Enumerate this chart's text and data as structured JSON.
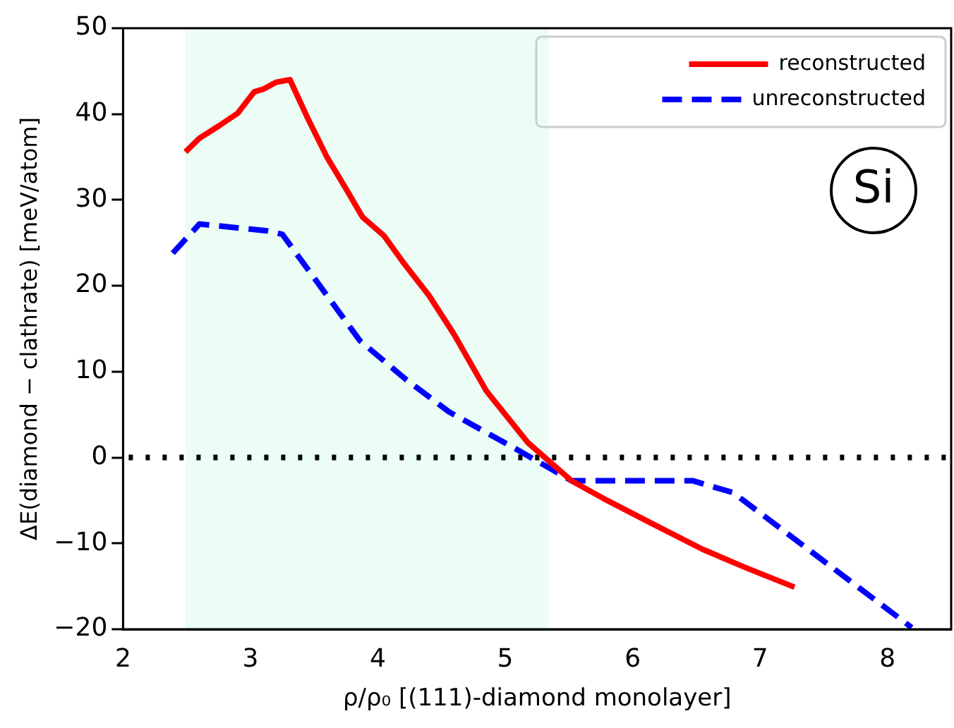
{
  "chart_data": {
    "type": "line",
    "xlabel": "ρ/ρ₀ [(111)-diamond monolayer]",
    "ylabel": "ΔE(diamond − clathrate) [meV/atom]",
    "xlim": [
      2,
      8.5
    ],
    "xticks": [
      2,
      3,
      4,
      5,
      6,
      7,
      8
    ],
    "ylim": [
      -20,
      50
    ],
    "yticks": [
      -20,
      -10,
      0,
      10,
      20,
      30,
      40,
      50
    ],
    "grid": false,
    "legend": "top right",
    "marker": "none",
    "series": [
      {
        "name": "reconstructed",
        "color": "#ff0000",
        "line_style": "solid",
        "x": [
          2.49,
          2.6,
          2.75,
          2.9,
          3.03,
          3.1,
          3.2,
          3.31,
          3.45,
          3.6,
          3.75,
          3.88,
          4.05,
          4.2,
          4.4,
          4.6,
          4.85,
          5.18,
          5.52,
          5.8,
          6.14,
          6.55,
          6.9,
          7.27
        ],
        "values": [
          35.6,
          37.2,
          38.6,
          40.1,
          42.6,
          42.9,
          43.7,
          44.0,
          39.5,
          35.0,
          31.3,
          28.0,
          25.8,
          22.7,
          18.9,
          14.3,
          7.8,
          1.7,
          -2.7,
          -5.0,
          -7.6,
          -10.7,
          -12.9,
          -15.1
        ]
      },
      {
        "name": "unreconstructed",
        "color": "#0000ff",
        "line_style": "dashed",
        "x": [
          2.39,
          2.6,
          3.13,
          3.25,
          3.86,
          4.22,
          4.56,
          5.06,
          5.52,
          6.47,
          6.79,
          8.19
        ],
        "values": [
          23.8,
          27.2,
          26.4,
          26.0,
          13.6,
          9.1,
          5.3,
          1.2,
          -2.7,
          -2.7,
          -4.1,
          -19.8
        ]
      }
    ],
    "bands": [
      {
        "axis": "x",
        "from": 2.49,
        "to": 5.34,
        "color": "#ebfdf5"
      }
    ],
    "ref_lines": [
      {
        "axis": "y",
        "value": 0,
        "color": "#000000",
        "line_style": "dotted"
      }
    ],
    "annotations": [
      "Si"
    ]
  }
}
